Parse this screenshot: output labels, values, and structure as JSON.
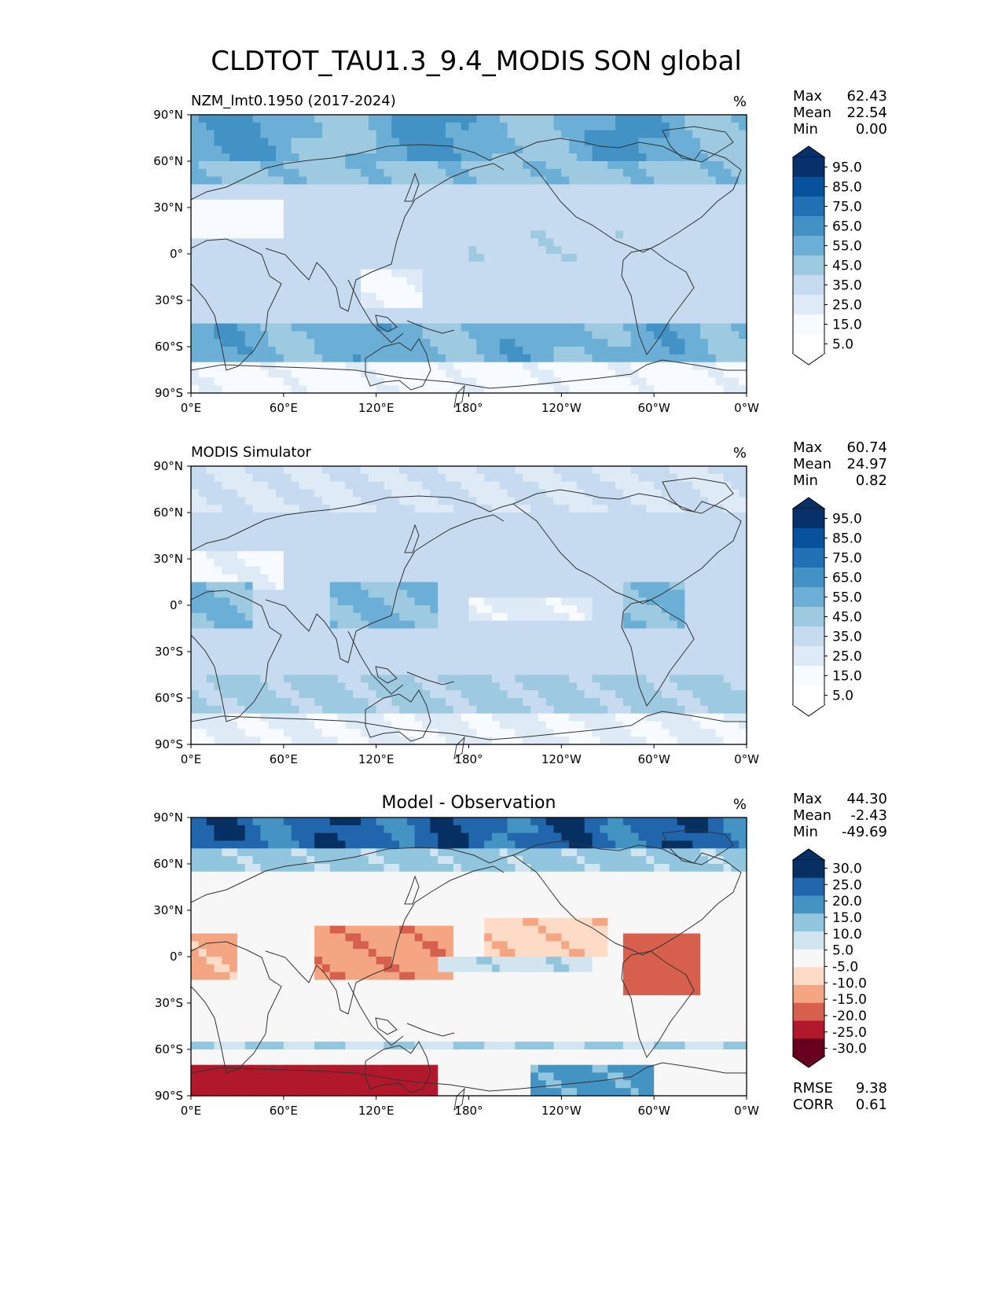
{
  "title": "CLDTOT_TAU1.3_9.4_MODIS SON global",
  "colors": {
    "blues": [
      "#f7fbff",
      "#deebf7",
      "#c6dbef",
      "#9ecae1",
      "#6baed6",
      "#4292c6",
      "#2171b5",
      "#08519c",
      "#08306b"
    ],
    "diff": [
      "#67001f",
      "#b2182b",
      "#d6604d",
      "#f4a582",
      "#fddbc7",
      "#f7f7f7",
      "#d1e5f0",
      "#92c5de",
      "#4393c3",
      "#2166ac",
      "#053061"
    ],
    "coast": "#333333"
  },
  "x_ticks": [
    "0°E",
    "60°E",
    "120°E",
    "180°",
    "120°W",
    "60°W",
    "0°W"
  ],
  "y_ticks": [
    "90°N",
    "60°N",
    "30°N",
    "0°",
    "30°S",
    "60°S",
    "90°S"
  ],
  "chart_data": [
    {
      "type": "heatmap",
      "panel": "test",
      "left_title": "NZM_lmt0.1950 (2017-2024)",
      "units": "%",
      "stats": {
        "max_label": "Max",
        "max": "62.43",
        "mean_label": "Mean",
        "mean": "22.54",
        "min_label": "Min",
        "min": "0.00"
      },
      "colorbar_ticks": [
        "95.0",
        "85.0",
        "75.0",
        "65.0",
        "55.0",
        "45.0",
        "35.0",
        "25.0",
        "15.0",
        "5.0"
      ],
      "xlim": [
        0,
        360
      ],
      "ylim": [
        -90,
        90
      ]
    },
    {
      "type": "heatmap",
      "panel": "reference",
      "left_title": "MODIS Simulator",
      "units": "%",
      "stats": {
        "max_label": "Max",
        "max": "60.74",
        "mean_label": "Mean",
        "mean": "24.97",
        "min_label": "Min",
        "min": "0.82"
      },
      "colorbar_ticks": [
        "95.0",
        "85.0",
        "75.0",
        "65.0",
        "55.0",
        "45.0",
        "35.0",
        "25.0",
        "15.0",
        "5.0"
      ],
      "xlim": [
        0,
        360
      ],
      "ylim": [
        -90,
        90
      ]
    },
    {
      "type": "heatmap",
      "panel": "difference",
      "center_title": "Model - Observation",
      "units": "%",
      "stats": {
        "max_label": "Max",
        "max": "44.30",
        "mean_label": "Mean",
        "mean": "-2.43",
        "min_label": "Min",
        "min": "-49.69"
      },
      "colorbar_ticks": [
        "30.0",
        "25.0",
        "20.0",
        "15.0",
        "10.0",
        "5.0",
        "-5.0",
        "-10.0",
        "-15.0",
        "-20.0",
        "-25.0",
        "-30.0"
      ],
      "extra_stats": {
        "rmse_label": "RMSE",
        "rmse": "9.38",
        "corr_label": "CORR",
        "corr": "0.61"
      },
      "xlim": [
        0,
        360
      ],
      "ylim": [
        -90,
        90
      ]
    }
  ]
}
